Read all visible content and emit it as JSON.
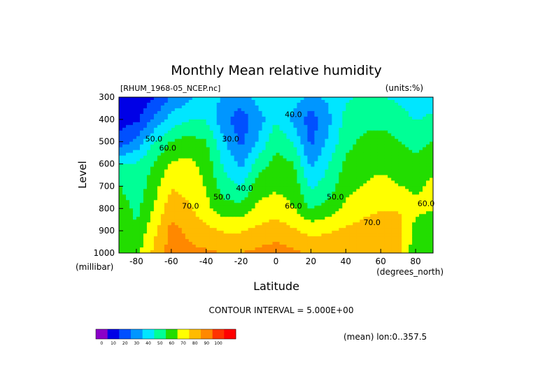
{
  "chart_data": {
    "type": "heatmap",
    "subtype": "filled-contour",
    "title": "Monthly Mean relative humidity",
    "file_label": "[RHUM_1968-05_NCEP.nc]",
    "units_label": "(units:%)",
    "xlabel": "Latitude",
    "x_units": "(degrees_north)",
    "ylabel": "Level",
    "y_units": "(millibar)",
    "xlim": [
      -90,
      90
    ],
    "ylim": [
      1000,
      300
    ],
    "x_ticks": [
      -80,
      -60,
      -40,
      -20,
      0,
      20,
      40,
      60,
      80
    ],
    "y_ticks": [
      300,
      400,
      500,
      600,
      700,
      800,
      900,
      1000
    ],
    "contour_interval_label": "CONTOUR INTERVAL = 5.000E+00",
    "mean_label": "(mean) lon:0..357.5",
    "contour_labels": [
      {
        "text": "30.0",
        "x": -26,
        "y": 500
      },
      {
        "text": "40.0",
        "x": -18,
        "y": 720
      },
      {
        "text": "40.0",
        "x": 10,
        "y": 390
      },
      {
        "text": "50.0",
        "x": -70,
        "y": 500
      },
      {
        "text": "50.0",
        "x": -31,
        "y": 760
      },
      {
        "text": "50.0",
        "x": 34,
        "y": 760
      },
      {
        "text": "60.0",
        "x": -62,
        "y": 540
      },
      {
        "text": "60.0",
        "x": 10,
        "y": 800
      },
      {
        "text": "60.0",
        "x": 86,
        "y": 790
      },
      {
        "text": "70.0",
        "x": -49,
        "y": 800
      },
      {
        "text": "70.0",
        "x": 55,
        "y": 875
      }
    ],
    "colorbar": {
      "ticks": [
        "0",
        "10",
        "20",
        "30",
        "40",
        "50",
        "60",
        "70",
        "80",
        "90",
        "100"
      ],
      "colors": [
        "#8a00c8",
        "#0000e6",
        "#0050ff",
        "#0096ff",
        "#00e6ff",
        "#00ff96",
        "#22dd00",
        "#ffff00",
        "#ffbb00",
        "#ff8800",
        "#ff3300",
        "#ff0000"
      ]
    },
    "series": [
      {
        "lat": -90,
        "values": [
          10,
          14,
          22,
          45,
          55,
          60,
          62,
          64
        ]
      },
      {
        "lat": -80,
        "values": [
          12,
          16,
          30,
          46,
          48,
          52,
          56,
          60
        ]
      },
      {
        "lat": -70,
        "values": [
          18,
          28,
          45,
          55,
          60,
          64,
          70,
          75
        ]
      },
      {
        "lat": -60,
        "values": [
          28,
          40,
          55,
          65,
          72,
          78,
          85,
          86
        ]
      },
      {
        "lat": -50,
        "values": [
          35,
          45,
          58,
          66,
          70,
          74,
          80,
          84
        ]
      },
      {
        "lat": -40,
        "values": [
          42,
          45,
          55,
          60,
          63,
          66,
          76,
          83
        ]
      },
      {
        "lat": -30,
        "values": [
          35,
          30,
          38,
          44,
          50,
          58,
          72,
          82
        ]
      },
      {
        "lat": -20,
        "values": [
          32,
          22,
          25,
          34,
          45,
          58,
          72,
          82
        ]
      },
      {
        "lat": -10,
        "values": [
          40,
          32,
          38,
          50,
          60,
          66,
          75,
          84
        ]
      },
      {
        "lat": 0,
        "values": [
          45,
          45,
          52,
          58,
          62,
          68,
          78,
          86
        ]
      },
      {
        "lat": 10,
        "values": [
          40,
          34,
          45,
          55,
          60,
          64,
          74,
          84
        ]
      },
      {
        "lat": 20,
        "values": [
          35,
          22,
          25,
          34,
          44,
          54,
          70,
          80
        ]
      },
      {
        "lat": 30,
        "values": [
          38,
          34,
          38,
          45,
          50,
          58,
          72,
          80
        ]
      },
      {
        "lat": 40,
        "values": [
          44,
          48,
          52,
          56,
          60,
          66,
          74,
          82
        ]
      },
      {
        "lat": 50,
        "values": [
          48,
          52,
          56,
          60,
          64,
          70,
          76,
          80
        ]
      },
      {
        "lat": 60,
        "values": [
          46,
          52,
          58,
          62,
          66,
          72,
          78,
          82
        ]
      },
      {
        "lat": 70,
        "values": [
          44,
          50,
          55,
          60,
          64,
          72,
          78,
          80
        ]
      },
      {
        "lat": 80,
        "values": [
          38,
          45,
          52,
          56,
          62,
          66,
          60,
          55
        ]
      },
      {
        "lat": 90,
        "values": [
          40,
          48,
          55,
          60,
          66,
          64,
          58,
          56
        ]
      }
    ]
  }
}
